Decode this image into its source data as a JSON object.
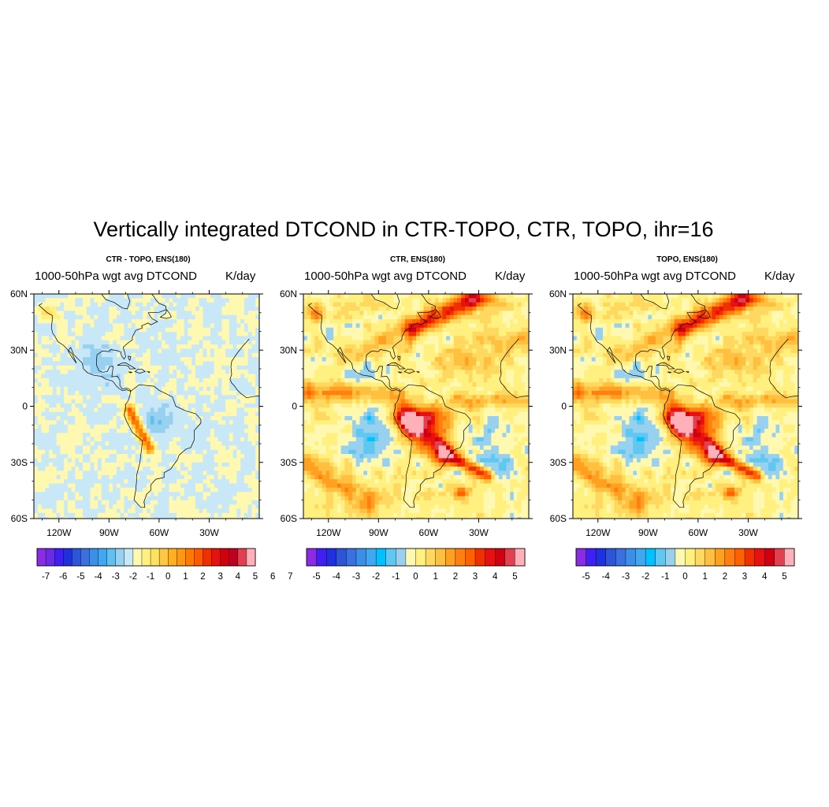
{
  "title": "Vertically integrated DTCOND in CTR-TOPO, CTR, TOPO, ihr=16",
  "panels": [
    {
      "title": "CTR - TOPO, ENS(180)",
      "subtitle": "1000-50hPa wgt avg DTCOND",
      "units": "K/day",
      "field_style": "diff",
      "lat_labels": [
        "60N",
        "30N",
        "0",
        "30S",
        "60S"
      ],
      "lon_labels": [
        "120W",
        "90W",
        "60W",
        "30W"
      ],
      "colorbar": {
        "labels": [
          "-7",
          "-6",
          "-5",
          "-4",
          "-3",
          "-2",
          "-1",
          "0",
          "1",
          "2",
          "3",
          "4",
          "5",
          "6",
          "7"
        ],
        "colors": [
          "#8b2be2",
          "#6a2ae6",
          "#4020f0",
          "#2030e0",
          "#2c55d8",
          "#3a70e0",
          "#3c8fe8",
          "#40a8f0",
          "#60c0f0",
          "#98d0f0",
          "#c8e8f8",
          "#fff8b0",
          "#fff080",
          "#ffe060",
          "#ffc840",
          "#ffb020",
          "#ff9810",
          "#ff7a00",
          "#ff5a00",
          "#f03000",
          "#e81010",
          "#d00010",
          "#c00020",
          "#e04050",
          "#ffb0b8"
        ]
      }
    },
    {
      "title": "CTR, ENS(180)",
      "subtitle": "1000-50hPa wgt avg DTCOND",
      "units": "K/day",
      "field_style": "full",
      "lat_labels": [
        "60N",
        "30N",
        "0",
        "30S",
        "60S"
      ],
      "lon_labels": [
        "120W",
        "90W",
        "60W",
        "30W"
      ],
      "colorbar": {
        "labels": [
          "-5",
          "-4",
          "-3",
          "-2",
          "-1",
          "0",
          "1",
          "2",
          "3",
          "4",
          "5"
        ],
        "colors": [
          "#8b2be2",
          "#4020f0",
          "#2030e0",
          "#2c55d8",
          "#3a70e0",
          "#3c8fe8",
          "#40a8f0",
          "#00c0ff",
          "#60c8f0",
          "#98d0f0",
          "#fff8b0",
          "#fff080",
          "#ffd860",
          "#ffc040",
          "#ffa020",
          "#ff8010",
          "#ff6000",
          "#f03000",
          "#e81010",
          "#d00010",
          "#e04050",
          "#ffb0b8"
        ]
      }
    },
    {
      "title": "TOPO, ENS(180)",
      "subtitle": "1000-50hPa wgt avg DTCOND",
      "units": "K/day",
      "field_style": "full",
      "lat_labels": [
        "60N",
        "30N",
        "0",
        "30S",
        "60S"
      ],
      "lon_labels": [
        "120W",
        "90W",
        "60W",
        "30W"
      ],
      "colorbar": {
        "labels": [
          "-5",
          "-4",
          "-3",
          "-2",
          "-1",
          "0",
          "1",
          "2",
          "3",
          "4",
          "5"
        ],
        "colors": [
          "#8b2be2",
          "#4020f0",
          "#2030e0",
          "#2c55d8",
          "#3a70e0",
          "#3c8fe8",
          "#40a8f0",
          "#00c0ff",
          "#60c8f0",
          "#98d0f0",
          "#fff8b0",
          "#fff080",
          "#ffd860",
          "#ffc040",
          "#ffa020",
          "#ff8010",
          "#ff6000",
          "#f03000",
          "#e81010",
          "#d00010",
          "#e04050",
          "#ffb0b8"
        ]
      }
    }
  ]
}
